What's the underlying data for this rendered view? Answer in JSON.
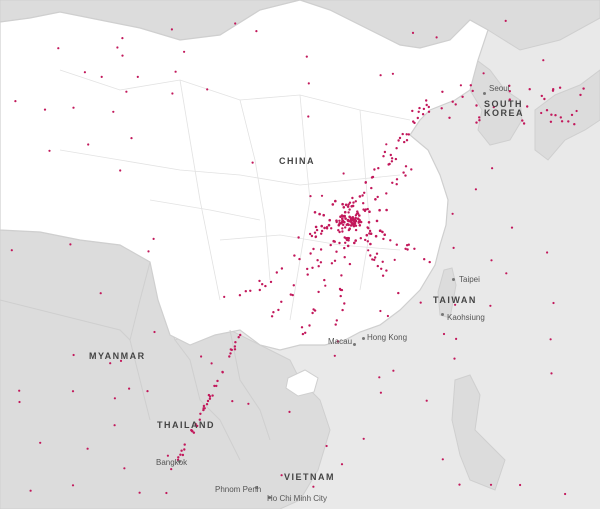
{
  "countries": {
    "china": "CHINA",
    "south_korea_line1": "SOUTH",
    "south_korea_line2": "KOREA",
    "taiwan": "TAIWAN",
    "myanmar": "MYANMAR",
    "thailand": "THAILAND",
    "vietnam": "VIETNAM"
  },
  "cities": {
    "seoul": "Seoul",
    "taipei": "Taipei",
    "kaohsiung": "Kaohsiung",
    "macau": "Macau",
    "hong_kong": "Hong Kong",
    "bangkok": "Bangkok",
    "phnom_penh": "Phnom Penh",
    "ho_chi_minh_city": "Ho Chi Minh City"
  },
  "colors": {
    "ocean": "#e9e9e9",
    "china_land": "#ffffff",
    "other_land": "#dcdcdc",
    "borders": "#cfcfcf",
    "dots": "#c2185b"
  }
}
